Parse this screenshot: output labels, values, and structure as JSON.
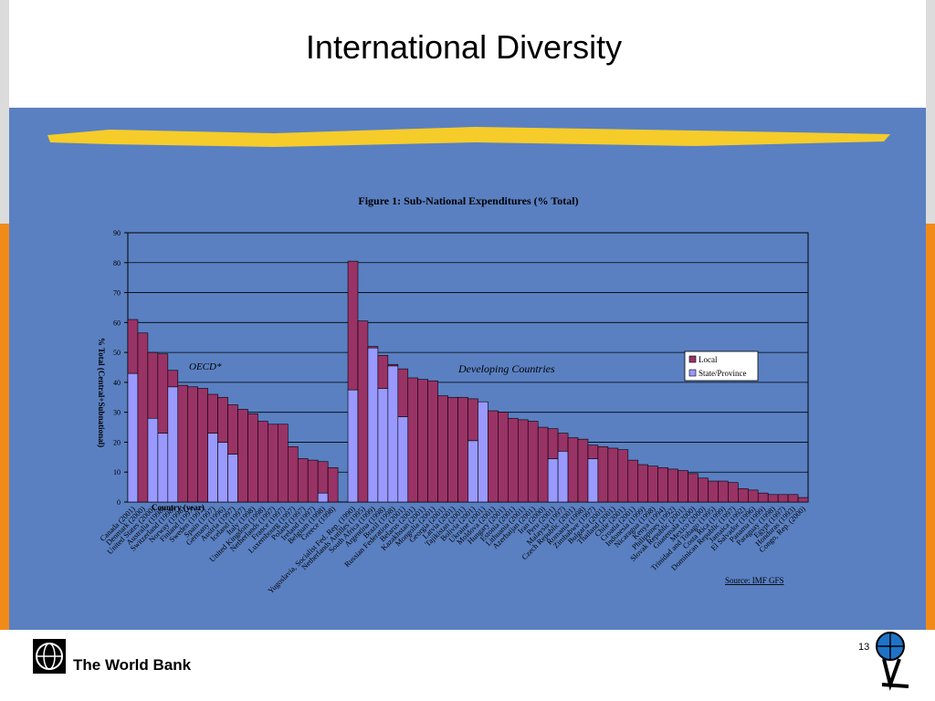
{
  "slide": {
    "title": "International Diversity",
    "footer": "The World Bank",
    "page_number": "13"
  },
  "chart_data": {
    "type": "stacked_bar",
    "title": "Figure 1: Sub-National Expenditures (% Total)",
    "y_label": "% Total (Central+Subnational)",
    "x_label": "Country (year)",
    "annotations": [
      "OECD*",
      "Developing Countries"
    ],
    "source": "Source: IMF GFS",
    "categories": [
      "Canada (2001)",
      "Denmark (2000)",
      "United States (2000)",
      "Australia (1998)",
      "Switzerland (1998)",
      "Norway (1998)",
      "Finland (1997)",
      "Sweden (1997)",
      "Spain (1997)",
      "Germany (1996)",
      "Austria (1997)",
      "Iceland (1997)",
      "Italy (1998)",
      "United Kingdom (1998)",
      "Netherlands (1997)",
      "France (1997)",
      "Luxembourg (1997)",
      "Poland (1997)",
      "Ireland (1997)",
      "Belgium (1998)",
      "Greece (1998)",
      null,
      "Yugoslavia, Socialist Fed. Rep. (1990)",
      "Netherlands Antilles (1995)",
      "South Africa (1999)",
      "Argentina (1998)",
      "Brazil (1998)",
      "Russian Federation (2001)",
      "Belarus (2001)",
      "Kazakhstan (2001)",
      "Mongolia (2001)",
      "Georgia (2001)",
      "Latvia (2001)",
      "Tajikistan (2001)",
      "Bolivia (2001)",
      "Ukraine (2001)",
      "Moldova (2001)",
      "Hungary (2001)",
      "Estonia (2001)",
      "Lithuania (2001)",
      "Azerbaijan (2001)",
      "Iran (2000)",
      "Peru (2001)",
      "Malaysia (1997)",
      "Czech Republic (2001)",
      "Romania (1998)",
      "Zimbabwe (1997)",
      "Bulgaria (2001)",
      "Thailand (2001)",
      "Chile (2001)",
      "Croatia (2001)",
      "Indonesia (1999)",
      "Nicaragua (1998)",
      "Kenya (1994)",
      "Philippines (1992)",
      "Slovak Republic (2001)",
      "Guatemala (2000)",
      "Mexico (2000)",
      "Trinidad and Tobago (1995)",
      "Costa Rica (1999)",
      "Dominican Republic (1997)",
      "Jamaica (1992)",
      "El Salvador (1996)",
      "Panama (1999)",
      "Paraguay (1998)",
      "Egypt (1997)",
      "Honduras (1993)",
      "Congo, Rep. (2000)"
    ],
    "series": [
      {
        "name": "State/Province",
        "color": "#9999ff",
        "values": [
          43,
          null,
          28,
          23,
          38.5,
          null,
          null,
          null,
          23,
          20,
          16,
          null,
          null,
          null,
          null,
          null,
          null,
          null,
          null,
          3,
          null,
          null,
          37.5,
          null,
          51.5,
          38,
          45.5,
          28.5,
          null,
          null,
          null,
          null,
          null,
          null,
          20.5,
          33.5,
          null,
          null,
          null,
          null,
          null,
          null,
          14.5,
          17,
          null,
          null,
          14.5,
          null,
          null,
          null,
          null,
          null,
          null,
          null,
          null,
          null,
          null,
          null,
          null,
          null,
          null,
          null,
          null,
          null,
          null,
          null,
          null,
          null
        ]
      },
      {
        "name": "Local",
        "color": "#993366",
        "values": [
          18,
          56.5,
          22,
          26.5,
          5.5,
          39,
          38.5,
          38,
          13,
          15,
          16.5,
          31,
          29.5,
          27,
          26,
          26,
          18.5,
          14.5,
          14,
          10.5,
          11.5,
          null,
          43,
          60.5,
          0.5,
          11,
          0.5,
          16,
          41.5,
          41,
          40.5,
          35.5,
          35,
          35,
          14,
          null,
          30.5,
          30,
          28,
          27.5,
          27,
          25,
          10,
          6,
          21.5,
          21,
          4.5,
          18.5,
          18,
          17.5,
          14,
          12.5,
          12,
          11.5,
          11,
          10.5,
          9.5,
          8,
          7,
          7,
          6.5,
          4.5,
          4,
          3,
          2.5,
          2.5,
          2.5,
          1.5
        ]
      }
    ],
    "ylim": [
      0,
      90
    ],
    "yticks": [
      0,
      10,
      20,
      30,
      40,
      50,
      60,
      70,
      80,
      90
    ],
    "grid": true
  }
}
